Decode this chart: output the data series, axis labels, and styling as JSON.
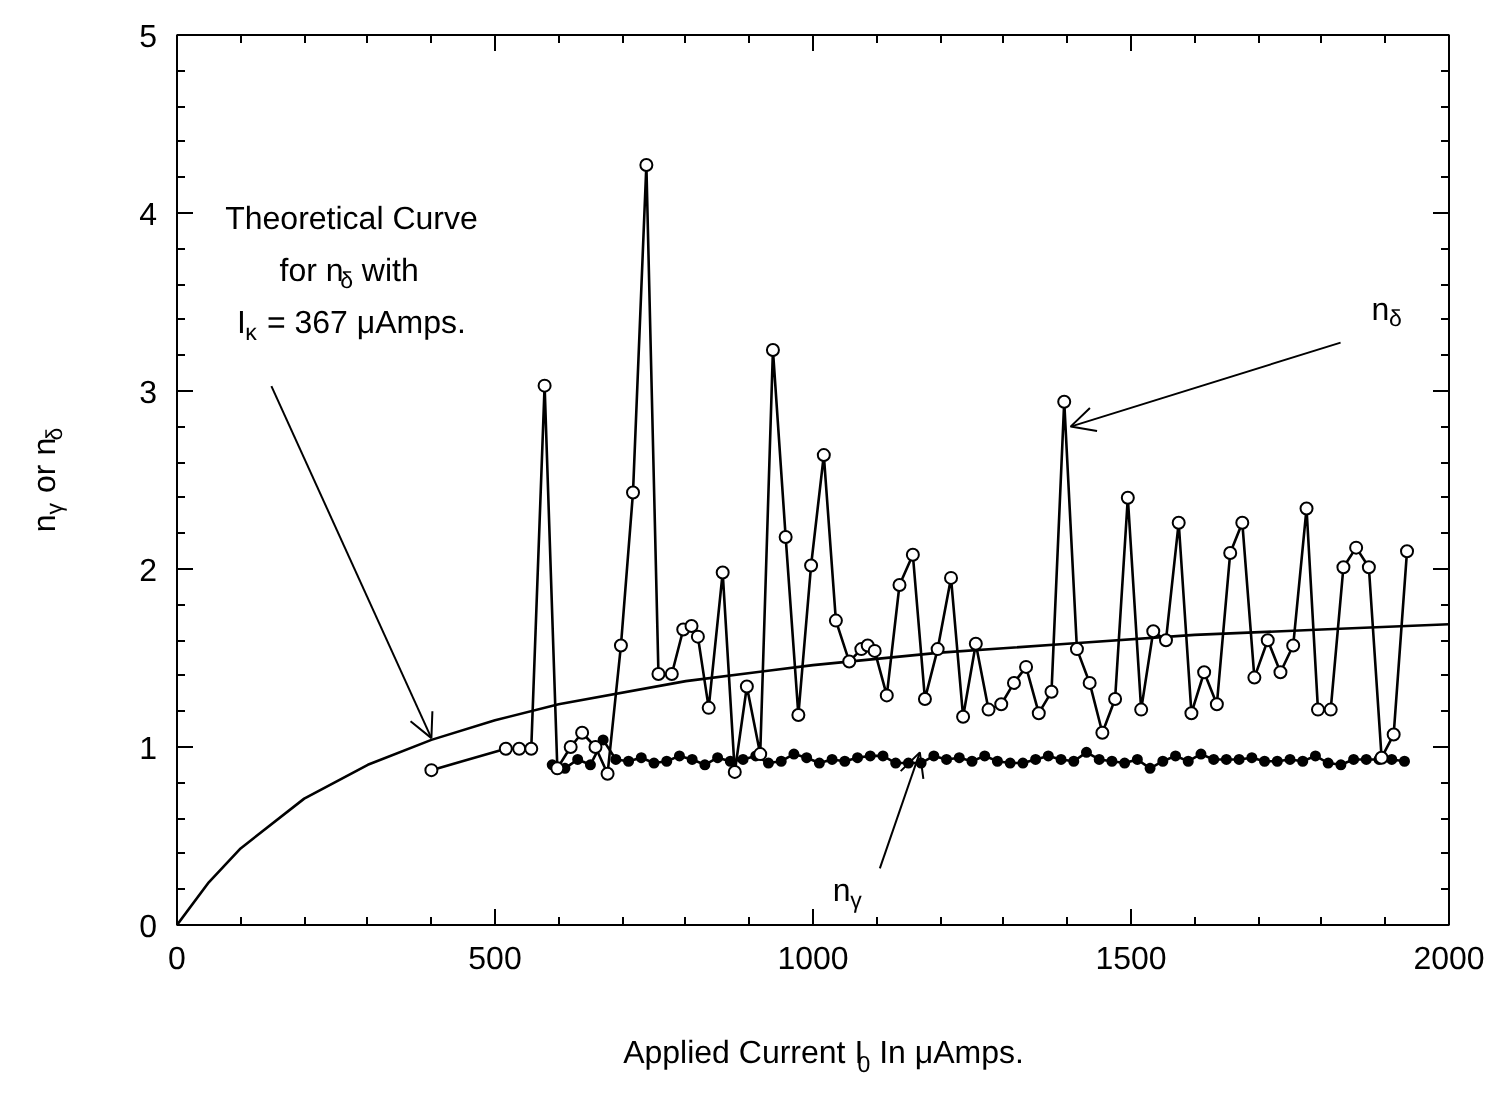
{
  "chart_data": {
    "type": "line",
    "xlabel": "Applied Current I$_{0}$ In μAmps.",
    "ylabel": "n$_{γ}$ or n$_{δ}$",
    "xlim": [
      0,
      2000
    ],
    "xticks": [
      0,
      500,
      1000,
      1500,
      2000
    ],
    "ylim": [
      0,
      5
    ],
    "yticks": [
      0,
      1,
      2,
      3,
      4,
      5
    ],
    "grid": false,
    "series": [
      {
        "color": "#000000",
        "marker": "none",
        "x": [
          0,
          50,
          100,
          200,
          300,
          400,
          500,
          600,
          800,
          1000,
          1200,
          1400,
          1600,
          1800,
          2000
        ],
        "values": [
          0,
          0.24,
          0.43,
          0.71,
          0.9,
          1.04,
          1.15,
          1.24,
          1.37,
          1.46,
          1.53,
          1.58,
          1.63,
          1.66,
          1.69
        ]
      },
      {
        "color": "#ffffff",
        "marker": "circle",
        "x": [
          400,
          517,
          538,
          557,
          578,
          598,
          619,
          637,
          658,
          677,
          698,
          717,
          738,
          757,
          778,
          796,
          809,
          819,
          836,
          858,
          877,
          896,
          917,
          937,
          957,
          977,
          997,
          1017,
          1036,
          1057,
          1076,
          1086,
          1097,
          1116,
          1136,
          1157,
          1176,
          1196,
          1217,
          1236,
          1256,
          1276,
          1296,
          1316,
          1335,
          1355,
          1375,
          1395,
          1415,
          1435,
          1455,
          1475,
          1495,
          1516,
          1535,
          1555,
          1575,
          1595,
          1615,
          1635,
          1656,
          1675,
          1694,
          1715,
          1735,
          1755,
          1776,
          1794,
          1814,
          1834,
          1854,
          1874,
          1894,
          1913,
          1934
        ],
        "values": [
          0.87,
          0.99,
          0.99,
          0.99,
          3.03,
          0.88,
          1.0,
          1.08,
          1.0,
          0.85,
          1.57,
          2.43,
          4.27,
          1.41,
          1.41,
          1.66,
          1.68,
          1.62,
          1.22,
          1.98,
          0.86,
          1.34,
          0.96,
          3.23,
          2.18,
          1.18,
          2.02,
          2.64,
          1.71,
          1.48,
          1.55,
          1.57,
          1.54,
          1.29,
          1.91,
          2.08,
          1.27,
          1.55,
          1.95,
          1.17,
          1.58,
          1.21,
          1.24,
          1.36,
          1.45,
          1.19,
          1.31,
          2.94,
          1.55,
          1.36,
          1.08,
          1.27,
          2.4,
          1.21,
          1.65,
          1.6,
          2.26,
          1.19,
          1.42,
          1.24,
          2.09,
          2.26,
          1.39,
          1.6,
          1.42,
          1.57,
          2.34,
          1.21,
          1.21,
          2.01,
          2.12,
          2.01,
          0.94,
          1.07,
          2.1
        ]
      },
      {
        "color": "#000000",
        "marker": "circle",
        "x": [
          590,
          610,
          630,
          650,
          670,
          690,
          710,
          730,
          750,
          770,
          790,
          810,
          830,
          850,
          870,
          890,
          910,
          930,
          950,
          970,
          990,
          1010,
          1030,
          1050,
          1070,
          1090,
          1110,
          1130,
          1150,
          1170,
          1190,
          1210,
          1230,
          1250,
          1270,
          1290,
          1310,
          1330,
          1350,
          1370,
          1390,
          1410,
          1430,
          1450,
          1470,
          1490,
          1510,
          1530,
          1550,
          1570,
          1590,
          1610,
          1630,
          1650,
          1670,
          1690,
          1710,
          1730,
          1750,
          1770,
          1790,
          1810,
          1830,
          1850,
          1870,
          1890,
          1910,
          1930
        ],
        "values": [
          0.9,
          0.88,
          0.93,
          0.9,
          1.04,
          0.93,
          0.92,
          0.94,
          0.91,
          0.92,
          0.95,
          0.93,
          0.9,
          0.94,
          0.92,
          0.93,
          0.95,
          0.91,
          0.92,
          0.96,
          0.94,
          0.91,
          0.93,
          0.92,
          0.94,
          0.95,
          0.95,
          0.91,
          0.91,
          0.91,
          0.95,
          0.93,
          0.94,
          0.92,
          0.95,
          0.92,
          0.91,
          0.91,
          0.93,
          0.95,
          0.93,
          0.92,
          0.97,
          0.93,
          0.92,
          0.91,
          0.93,
          0.88,
          0.92,
          0.95,
          0.92,
          0.96,
          0.93,
          0.93,
          0.93,
          0.94,
          0.92,
          0.92,
          0.93,
          0.92,
          0.95,
          0.91,
          0.9,
          0.93,
          0.93,
          0.93,
          0.93,
          0.92
        ]
      }
    ],
    "annotations": [
      "Theoretical Curve",
      "for n$_{δ}$ with",
      {
        "text": "I$_{κ}$ = 367 μAmps.",
        "x": 400,
        "y": 1.05
      },
      {
        "text": "n$_{δ}$",
        "x": 1405,
        "y": 2.8
      },
      {
        "text": "n$_{γ}$",
        "x": 1168,
        "y": 0.97
      }
    ]
  }
}
